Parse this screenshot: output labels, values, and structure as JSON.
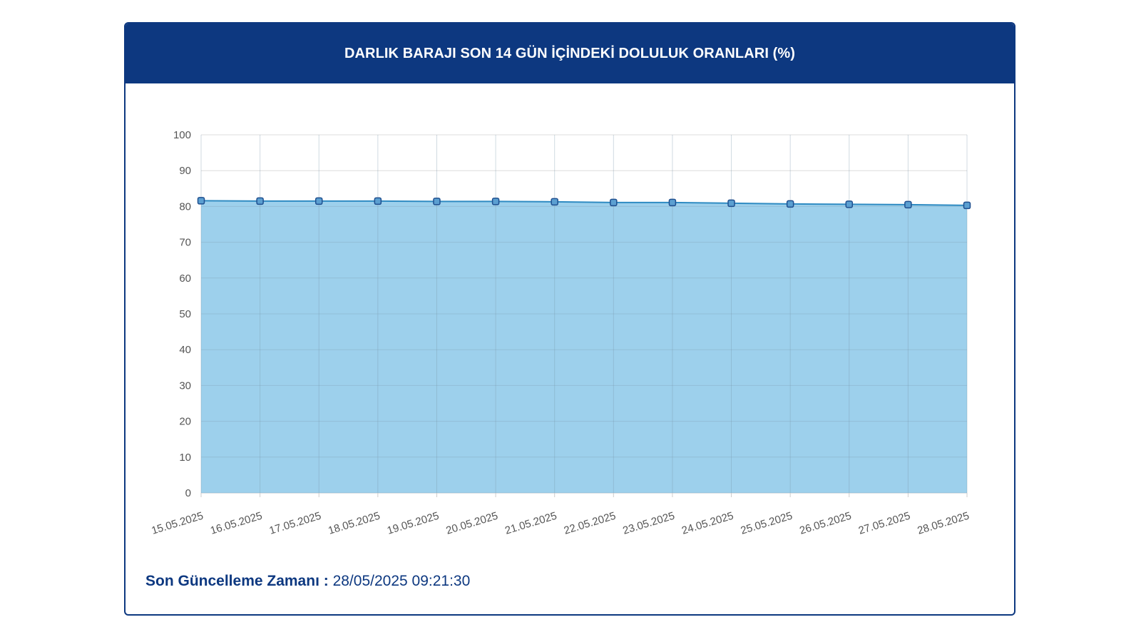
{
  "header": {
    "title": "DARLIK BARAJI SON 14 GÜN İÇİNDEKİ DOLULUK ORANLARI (%)"
  },
  "footer": {
    "label": "Son Güncelleme Zamanı :",
    "value": "28/05/2025 09:21:30"
  },
  "colors": {
    "header_bg": "#0d3880",
    "line": "#2f8bc2",
    "fill": "#9dd0ec",
    "marker_fill": "#5b9fd1",
    "marker_stroke": "#1f4f8f",
    "grid": "#dcdcdc"
  },
  "chart_data": {
    "type": "area",
    "categories": [
      "15.05.2025",
      "16.05.2025",
      "17.05.2025",
      "18.05.2025",
      "19.05.2025",
      "20.05.2025",
      "21.05.2025",
      "22.05.2025",
      "23.05.2025",
      "24.05.2025",
      "25.05.2025",
      "26.05.2025",
      "27.05.2025",
      "28.05.2025"
    ],
    "values": [
      81.6,
      81.5,
      81.5,
      81.5,
      81.4,
      81.4,
      81.3,
      81.1,
      81.1,
      80.9,
      80.7,
      80.6,
      80.5,
      80.3
    ],
    "title": "DARLIK BARAJI SON 14 GÜN İÇİNDEKİ DOLULUK ORANLARI (%)",
    "xlabel": "",
    "ylabel": "",
    "ylim": [
      0,
      100
    ],
    "yticks": [
      0,
      10,
      20,
      30,
      40,
      50,
      60,
      70,
      80,
      90,
      100
    ],
    "grid": true,
    "legend": "none"
  }
}
